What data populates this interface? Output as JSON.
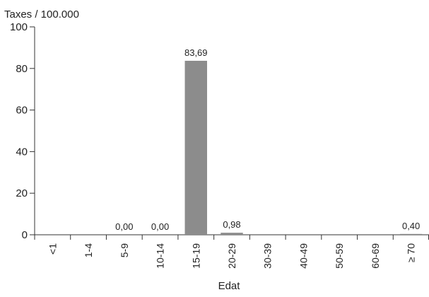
{
  "chart_data": {
    "type": "bar",
    "ylabel": "Taxes / 100.000",
    "xlabel": "Edat",
    "ylim": [
      0,
      100
    ],
    "yticks": [
      0,
      20,
      40,
      60,
      80,
      100
    ],
    "categories": [
      "<1",
      "1-4",
      "5-9",
      "10-14",
      "15-19",
      "20-29",
      "30-39",
      "40-49",
      "50-59",
      "60-69",
      "≥ 70"
    ],
    "values": [
      null,
      null,
      0.0,
      0.0,
      83.69,
      0.98,
      null,
      null,
      null,
      null,
      0.4
    ],
    "data_labels": [
      "",
      "",
      "0,00",
      "0,00",
      "83,69",
      "0,98",
      "",
      "",
      "",
      "",
      "0,40"
    ],
    "bar_color": "#8c8c8c",
    "axis_color": "#333333",
    "grid": false
  }
}
